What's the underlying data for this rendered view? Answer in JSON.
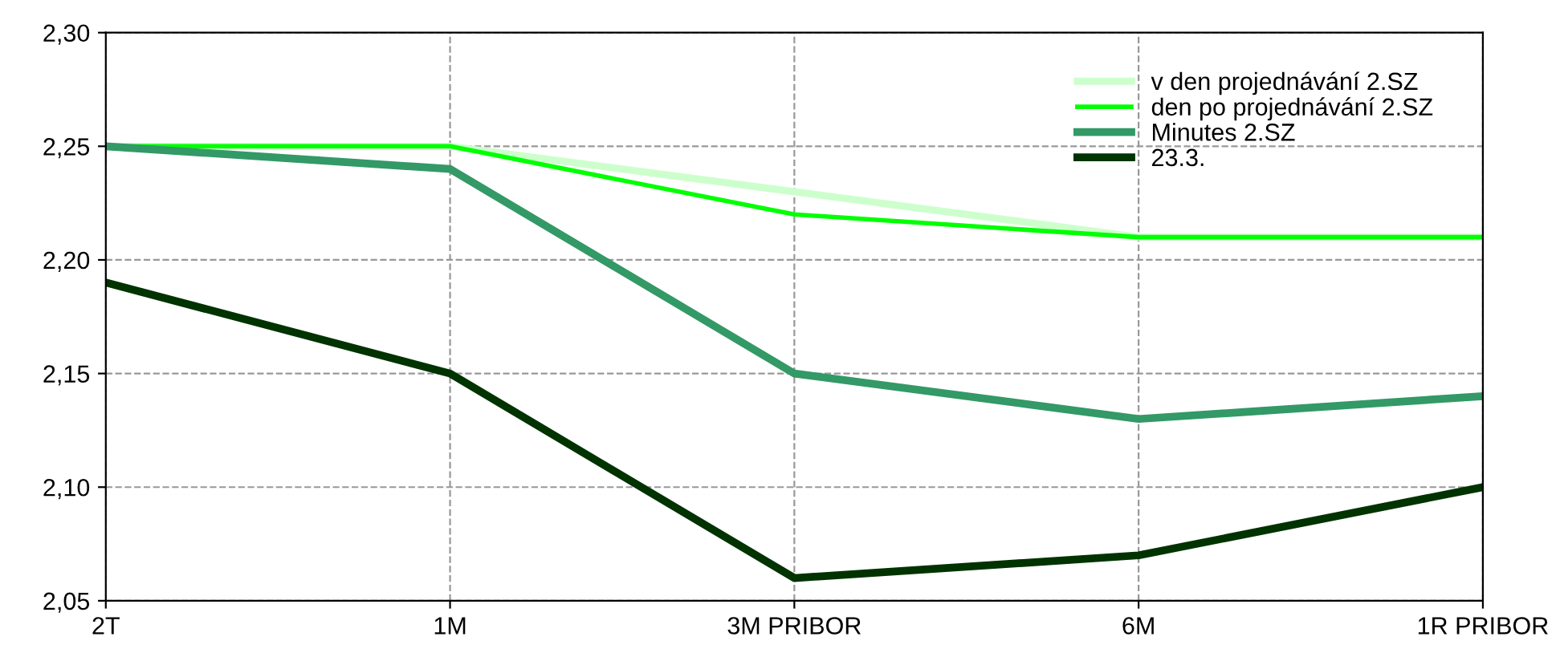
{
  "chart_data": {
    "type": "line",
    "categories": [
      "2T",
      "1M",
      "3M PRIBOR",
      "6M",
      "1R PRIBOR"
    ],
    "series": [
      {
        "name": "v den projednávání 2.SZ",
        "color": "#ccffcc",
        "values": [
          2.25,
          2.25,
          2.23,
          2.21,
          2.21
        ]
      },
      {
        "name": "den po projednávání 2.SZ",
        "color": "#00ff00",
        "values": [
          2.25,
          2.25,
          2.22,
          2.21,
          2.21
        ]
      },
      {
        "name": "Minutes 2.SZ",
        "color": "#339966",
        "values": [
          2.25,
          2.24,
          2.15,
          2.13,
          2.14
        ]
      },
      {
        "name": "23.3.",
        "color": "#003300",
        "values": [
          2.19,
          2.15,
          2.06,
          2.07,
          2.1
        ]
      }
    ],
    "ylim": [
      2.05,
      2.3
    ],
    "yticks": [
      {
        "value": 2.05,
        "label": "2,05"
      },
      {
        "value": 2.1,
        "label": "2,10"
      },
      {
        "value": 2.15,
        "label": "2,15"
      },
      {
        "value": 2.2,
        "label": "2,20"
      },
      {
        "value": 2.25,
        "label": "2,25"
      },
      {
        "value": 2.3,
        "label": "2,30"
      }
    ],
    "grid": true,
    "legend": "top right",
    "marker": "none",
    "line_style": "solid"
  }
}
